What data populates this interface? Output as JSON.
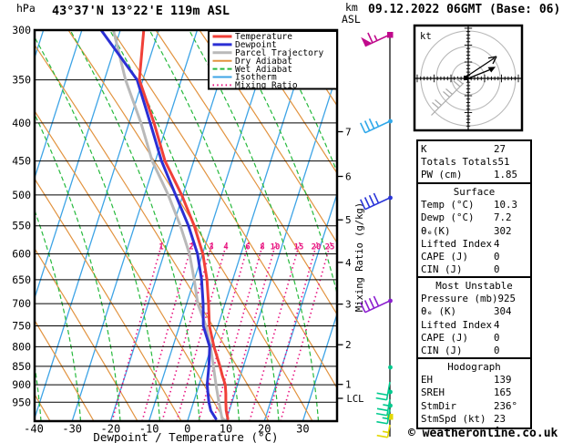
{
  "header": {
    "pressure_unit": "hPa",
    "station_title": "43°37'N 13°22'E 119m ASL",
    "altitude_unit_line1": "km",
    "altitude_unit_line2": "ASL",
    "datetime": "09.12.2022 06GMT (Base: 06)"
  },
  "chart_data": {
    "type": "skewt-log-p-sounding",
    "title": "43°37'N 13°22'E 119m ASL",
    "xlabel": "Dewpoint / Temperature (°C)",
    "x_ticks_c": [
      -40,
      -30,
      -20,
      -10,
      0,
      10,
      20,
      30
    ],
    "pressure_ticks_hpa": [
      300,
      350,
      400,
      450,
      500,
      550,
      600,
      650,
      700,
      750,
      800,
      850,
      900,
      950
    ],
    "pressure_range_hpa": [
      300,
      1007
    ],
    "km_asl_ticks": [
      1,
      2,
      3,
      4,
      5,
      6,
      7
    ],
    "lcl_label": "LCL",
    "mixing_ratio_axis_label": "Mixing Ratio (g/kg)",
    "mixing_ratio_lines_gkg": [
      "1",
      "2",
      "3",
      "4",
      "6",
      "8",
      "10",
      "15",
      "20",
      "25"
    ],
    "grid": "on",
    "legend_position": "top-right",
    "legend": [
      {
        "label": "Temperature",
        "color": "#f04038",
        "dash": "",
        "width": 3
      },
      {
        "label": "Dewpoint",
        "color": "#2b2fd4",
        "dash": "",
        "width": 3
      },
      {
        "label": "Parcel Trajectory",
        "color": "#b9b9b9",
        "dash": "",
        "width": 3
      },
      {
        "label": "Dry Adiabat",
        "color": "#e2933f",
        "dash": "",
        "width": 1.2
      },
      {
        "label": "Wet Adiabat",
        "color": "#26b93c",
        "dash": "5 3",
        "width": 1.2
      },
      {
        "label": "Isotherm",
        "color": "#3ea4e6",
        "dash": "",
        "width": 1.3
      },
      {
        "label": "Mixing Ratio",
        "color": "#e8137f",
        "dash": "1.5 3.2",
        "width": 1.6
      }
    ],
    "series": [
      {
        "name": "Temperature",
        "color": "#f04038",
        "width": 3,
        "points_p_t": [
          [
            300,
            -43.9
          ],
          [
            350,
            -40.9
          ],
          [
            400,
            -33.5
          ],
          [
            450,
            -27.5
          ],
          [
            500,
            -20.3
          ],
          [
            550,
            -14.5
          ],
          [
            600,
            -9.9
          ],
          [
            650,
            -6.7
          ],
          [
            700,
            -4.3
          ],
          [
            750,
            -2.2
          ],
          [
            800,
            0.7
          ],
          [
            850,
            3.9
          ],
          [
            875,
            5.3
          ],
          [
            900,
            6.8
          ],
          [
            925,
            7.7
          ],
          [
            950,
            8.4
          ],
          [
            975,
            9.2
          ],
          [
            1000,
            10.3
          ]
        ]
      },
      {
        "name": "Dewpoint",
        "color": "#2b2fd4",
        "width": 3,
        "points_p_t": [
          [
            300,
            -55.0
          ],
          [
            350,
            -41.5
          ],
          [
            400,
            -34.5
          ],
          [
            450,
            -28.4
          ],
          [
            500,
            -21.9
          ],
          [
            550,
            -16.0
          ],
          [
            600,
            -11.3
          ],
          [
            650,
            -8.1
          ],
          [
            700,
            -5.7
          ],
          [
            750,
            -3.8
          ],
          [
            800,
            -0.4
          ],
          [
            850,
            1.0
          ],
          [
            900,
            2.1
          ],
          [
            950,
            4.0
          ],
          [
            975,
            5.2
          ],
          [
            1000,
            7.2
          ]
        ]
      },
      {
        "name": "Parcel Trajectory",
        "color": "#b9b9b9",
        "width": 3,
        "points_p_t": [
          [
            300,
            -51.8
          ],
          [
            350,
            -44.5
          ],
          [
            400,
            -36.9
          ],
          [
            450,
            -30.8
          ],
          [
            500,
            -23.8
          ],
          [
            550,
            -18.1
          ],
          [
            600,
            -13.4
          ],
          [
            650,
            -10.0
          ],
          [
            700,
            -7.1
          ],
          [
            750,
            -3.1
          ],
          [
            800,
            -0.2
          ],
          [
            850,
            2.2
          ],
          [
            900,
            4.4
          ],
          [
            950,
            6.6
          ],
          [
            1000,
            8.8
          ],
          [
            1005,
            9.8
          ]
        ]
      }
    ]
  },
  "wind_column": {
    "barbs": [
      {
        "y": 38,
        "color": "#c00a8c",
        "flags": 1,
        "full": 1,
        "half": 1,
        "angle": 205,
        "len": 30
      },
      {
        "y": 133,
        "color": "#2fa8ea",
        "flags": 0,
        "full": 3,
        "half": 1,
        "angle": 205,
        "len": 30
      },
      {
        "y": 217,
        "color": "#2a35d8",
        "flags": 0,
        "full": 4,
        "half": 0,
        "angle": 205,
        "len": 30
      },
      {
        "y": 330,
        "color": "#8c1fd0",
        "flags": 0,
        "full": 4,
        "half": 0,
        "angle": 205,
        "len": 30
      },
      {
        "y": 419,
        "color": "#00ca8e",
        "flags": 0,
        "full": 2,
        "half": 0,
        "angle": 260,
        "len": 20
      },
      {
        "y": 438,
        "color": "#00ca8e",
        "flags": 0,
        "full": 2,
        "half": 1,
        "angle": 260,
        "len": 18
      },
      {
        "y": 449,
        "color": "#00ca8e",
        "flags": 0,
        "full": 1,
        "half": 1,
        "angle": 260,
        "len": 16
      },
      {
        "y": 466,
        "color": "#e3d800",
        "flags": 0,
        "full": 1,
        "half": 1,
        "angle": 260,
        "len": 14
      }
    ],
    "markers": [
      {
        "y": 38,
        "color": "#c00a8c",
        "shape": "square"
      },
      {
        "y": 133,
        "color": "#2fa8ea",
        "shape": "dot"
      },
      {
        "y": 217,
        "color": "#2a35d8",
        "shape": "dot"
      },
      {
        "y": 330,
        "color": "#8c1fd0",
        "shape": "dot"
      },
      {
        "y": 403,
        "color": "#00ca8e",
        "shape": "dot"
      },
      {
        "y": 430,
        "color": "#00ca8e",
        "shape": "dot"
      },
      {
        "y": 445,
        "color": "#00ca8e",
        "shape": "dot"
      },
      {
        "y": 457,
        "color": "#e3d800",
        "shape": "square"
      }
    ]
  },
  "hodograph": {
    "unit": "kt"
  },
  "panel": {
    "t1": {
      "rows": [
        [
          "K",
          "27"
        ],
        [
          "Totals Totals",
          "51"
        ],
        [
          "PW (cm)",
          "1.85"
        ]
      ]
    },
    "t2": {
      "title": "Surface",
      "rows": [
        [
          "Temp (°C)",
          "10.3"
        ],
        [
          "Dewp (°C)",
          "7.2"
        ],
        [
          "θₑ(K)",
          "302"
        ],
        [
          "Lifted Index",
          "4"
        ],
        [
          "CAPE (J)",
          "0"
        ],
        [
          "CIN (J)",
          "0"
        ]
      ]
    },
    "t3": {
      "title": "Most Unstable",
      "rows": [
        [
          "Pressure (mb)",
          "925"
        ],
        [
          "θₑ (K)",
          "304"
        ],
        [
          "Lifted Index",
          "4"
        ],
        [
          "CAPE (J)",
          "0"
        ],
        [
          "CIN (J)",
          "0"
        ]
      ]
    },
    "t4": {
      "title": "Hodograph",
      "rows": [
        [
          "EH",
          "139"
        ],
        [
          "SREH",
          "165"
        ],
        [
          "StmDir",
          "236°"
        ],
        [
          "StmSpd (kt)",
          "23"
        ]
      ]
    }
  },
  "footer": {
    "copyright": "© weatheronline.co.uk"
  }
}
